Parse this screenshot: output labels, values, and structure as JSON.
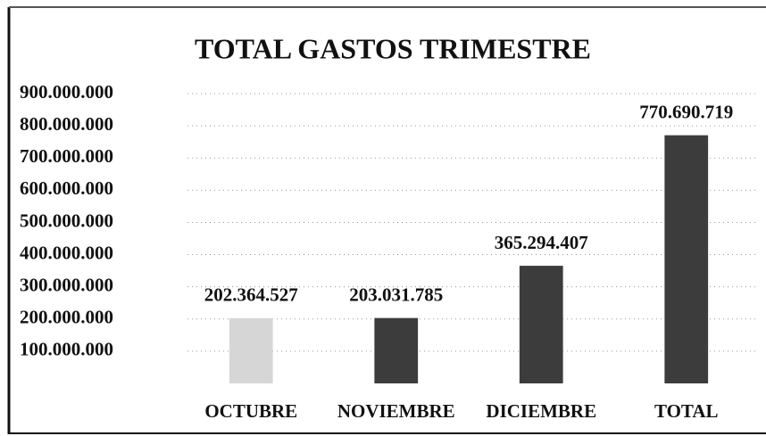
{
  "chart_data": {
    "type": "bar",
    "title": "TOTAL GASTOS TRIMESTRE",
    "categories": [
      "OCTUBRE",
      "NOVIEMBRE",
      "DICIEMBRE",
      "TOTAL"
    ],
    "values": [
      202364527,
      203031785,
      365294407,
      770690719
    ],
    "value_labels": [
      "202.364.527",
      "203.031.785",
      "365.294.407",
      "770.690.719"
    ],
    "colors": [
      "#d6d6d6",
      "#3c3c3c",
      "#3c3c3c",
      "#3c3c3c"
    ],
    "ylim": [
      0,
      900000000
    ],
    "yticks": [
      {
        "value": 100000000,
        "label": "100.000.000"
      },
      {
        "value": 200000000,
        "label": "200.000.000"
      },
      {
        "value": 300000000,
        "label": "300.000.000"
      },
      {
        "value": 400000000,
        "label": "400.000.000"
      },
      {
        "value": 500000000,
        "label": "500.000.000"
      },
      {
        "value": 600000000,
        "label": "600.000.000"
      },
      {
        "value": 700000000,
        "label": "700.000.000"
      },
      {
        "value": 800000000,
        "label": "800.000.000"
      },
      {
        "value": 900000000,
        "label": "900.000.000"
      }
    ],
    "grid": true
  }
}
